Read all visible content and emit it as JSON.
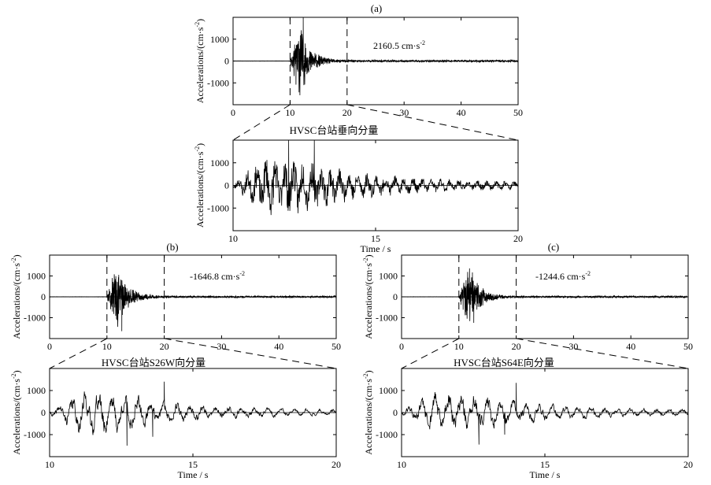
{
  "colors": {
    "line": "#000000",
    "background": "#ffffff"
  },
  "chart_data": [
    {
      "id": "a-full",
      "type": "line",
      "panel_label": "(a)",
      "xlabel": "",
      "ylabel": "Accelerations/(cm·s",
      "ylabel_sup": "-2",
      "ylabel_close": ")",
      "xlim": [
        0,
        50
      ],
      "ylim": [
        -2000,
        2000
      ],
      "xticks": [
        0,
        10,
        20,
        30,
        40,
        50
      ],
      "yticks": [
        -1000,
        0,
        1000
      ],
      "annotation": "2160.5 cm·s",
      "annotation_sup": "-2",
      "zoom_window": [
        10,
        20
      ]
    },
    {
      "id": "a-zoom",
      "type": "line",
      "title": "HVSC台站垂向分量",
      "xlabel": "Time / s",
      "ylabel": "Accelerations/(cm·s",
      "ylabel_sup": "-2",
      "ylabel_close": ")",
      "xlim": [
        10,
        20
      ],
      "ylim": [
        -2000,
        2000
      ],
      "xticks": [
        10,
        15,
        20
      ],
      "yticks": [
        -1000,
        0,
        1000
      ]
    },
    {
      "id": "b-full",
      "type": "line",
      "panel_label": "(b)",
      "xlabel": "",
      "ylabel": "Accelerations/(cm·s",
      "ylabel_sup": "-2",
      "ylabel_close": ")",
      "xlim": [
        0,
        50
      ],
      "ylim": [
        -2000,
        2000
      ],
      "xticks": [
        0,
        10,
        20,
        30,
        40,
        50
      ],
      "yticks": [
        -1000,
        0,
        1000
      ],
      "annotation": "-1646.8 cm·s",
      "annotation_sup": "-2",
      "zoom_window": [
        10,
        20
      ]
    },
    {
      "id": "b-zoom",
      "type": "line",
      "title": "HVSC台站S26W向分量",
      "xlabel": "Time / s",
      "ylabel": "Accelerations/(cm·s",
      "ylabel_sup": "-2",
      "ylabel_close": ")",
      "xlim": [
        10,
        20
      ],
      "ylim": [
        -2000,
        2000
      ],
      "xticks": [
        10,
        15,
        20
      ],
      "yticks": [
        -1000,
        0,
        1000
      ]
    },
    {
      "id": "c-full",
      "type": "line",
      "panel_label": "(c)",
      "xlabel": "",
      "ylabel": "Accelerations/(cm·s",
      "ylabel_sup": "-2",
      "ylabel_close": ")",
      "xlim": [
        0,
        50
      ],
      "ylim": [
        -2000,
        2000
      ],
      "xticks": [
        0,
        10,
        20,
        30,
        40,
        50
      ],
      "yticks": [
        -1000,
        0,
        1000
      ],
      "annotation": "-1244.6 cm·s",
      "annotation_sup": "-2",
      "zoom_window": [
        10,
        20
      ]
    },
    {
      "id": "c-zoom",
      "type": "line",
      "title": "HVSC台站S64E向分量",
      "xlabel": "Time / s",
      "ylabel": "Accelerations/(cm·s",
      "ylabel_sup": "-2",
      "ylabel_close": ")",
      "xlim": [
        10,
        20
      ],
      "ylim": [
        -2000,
        2000
      ],
      "xticks": [
        10,
        15,
        20
      ],
      "yticks": [
        -1000,
        0,
        1000
      ]
    }
  ]
}
